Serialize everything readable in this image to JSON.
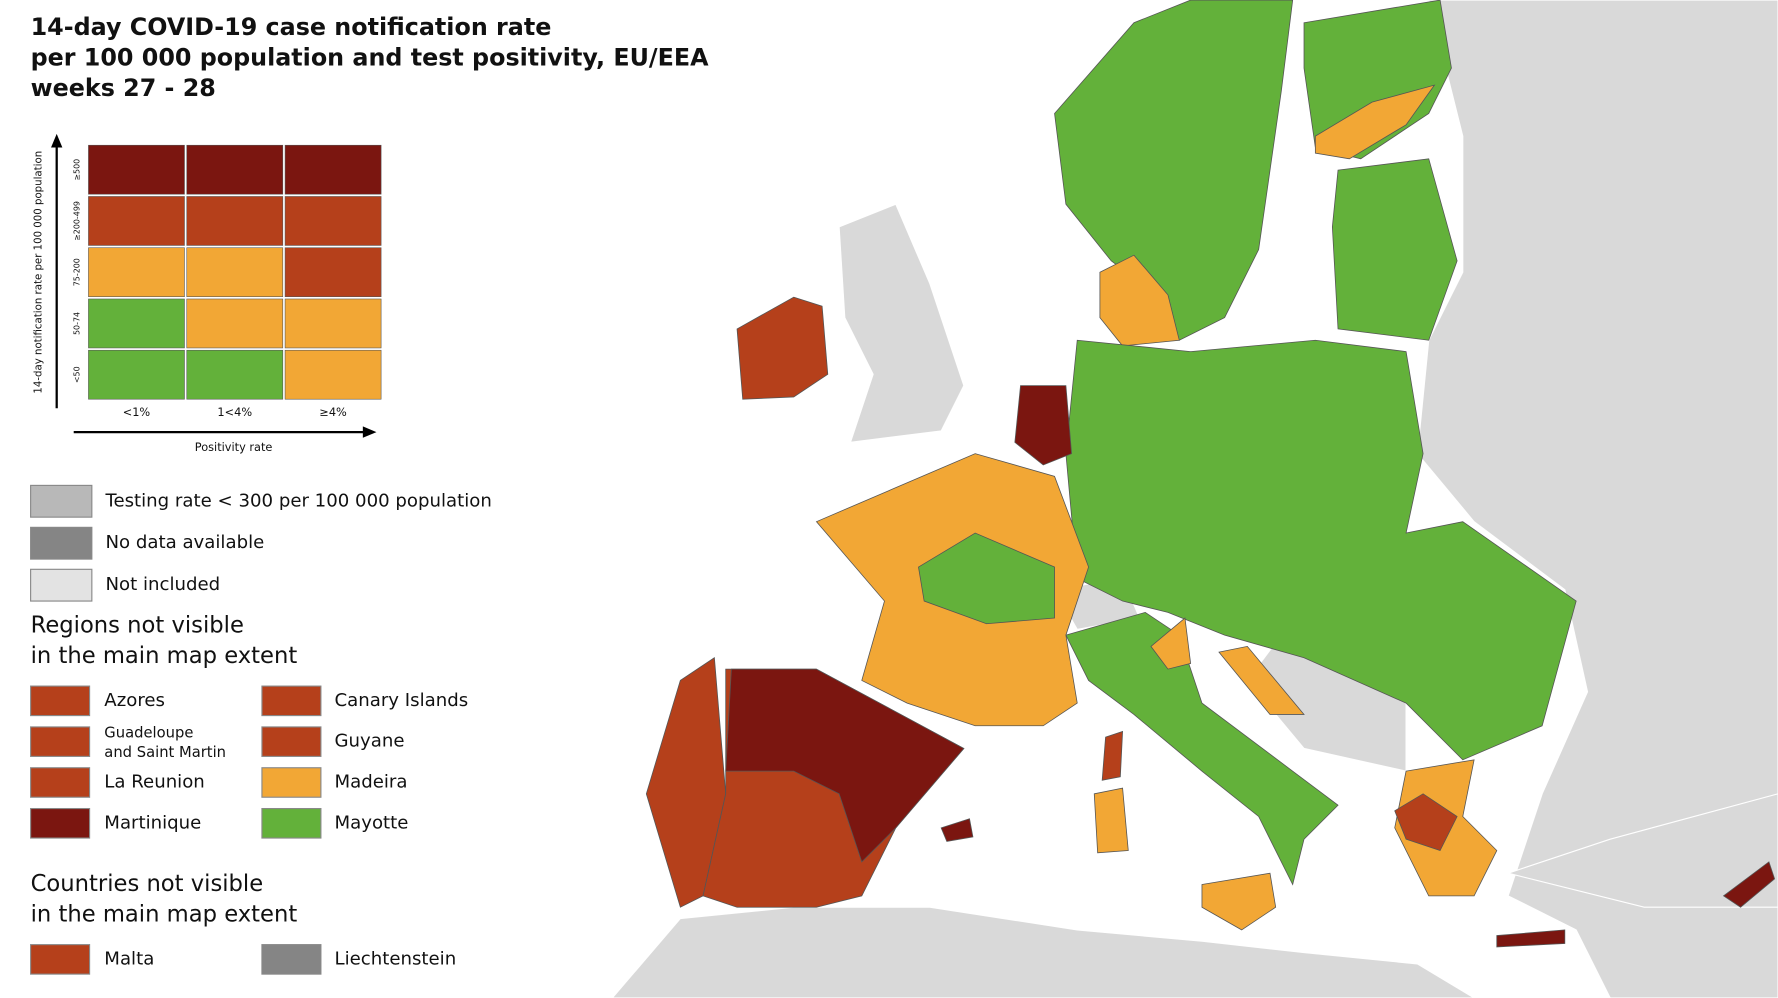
{
  "title": [
    "14-day COVID-19 case notification rate",
    "per 100 000 population and test positivity, EU/EEA",
    "weeks 27 - 28"
  ],
  "matrix": {
    "y_label": "14-day notification rate per 100 000 population",
    "rows": [
      "≥500",
      "≥200-499",
      "75-200",
      "50-74",
      "<50"
    ],
    "columns": [
      "<1%",
      "1<4%",
      "≥4%"
    ],
    "x_label": "Positivity rate",
    "cells": [
      [
        "#7b1610",
        "#7b1610",
        "#7b1610"
      ],
      [
        "#b5401b",
        "#b5401b",
        "#b5401b"
      ],
      [
        "#f2a735",
        "#f2a735",
        "#b5401b"
      ],
      [
        "#63b13a",
        "#f2a735",
        "#f2a735"
      ],
      [
        "#63b13a",
        "#63b13a",
        "#f2a735"
      ]
    ]
  },
  "legend": [
    {
      "label": "Testing rate < 300 per 100 000 population",
      "color": "#b8b8b8"
    },
    {
      "label": "No data available",
      "color": "#858585"
    },
    {
      "label": "Not included",
      "color": "#e3e3e3"
    }
  ],
  "regions": {
    "heading": [
      "Regions not visible",
      "in the main map extent"
    ],
    "items": [
      {
        "label": "Azores",
        "color": "#b5401b"
      },
      {
        "label": "Canary Islands",
        "color": "#b5401b"
      },
      {
        "label": [
          "Guadeloupe",
          "and Saint Martin"
        ],
        "color": "#b5401b"
      },
      {
        "label": "Guyane",
        "color": "#b5401b"
      },
      {
        "label": "La Reunion",
        "color": "#b5401b"
      },
      {
        "label": "Madeira",
        "color": "#f2a735"
      },
      {
        "label": "Martinique",
        "color": "#7b1610"
      },
      {
        "label": "Mayotte",
        "color": "#63b13a"
      }
    ]
  },
  "countries": {
    "heading": [
      "Countries not visible",
      "in the main map extent"
    ],
    "items": [
      {
        "label": "Malta",
        "color": "#b5401b"
      },
      {
        "label": "Liechtenstein",
        "color": "#858585"
      }
    ]
  }
}
